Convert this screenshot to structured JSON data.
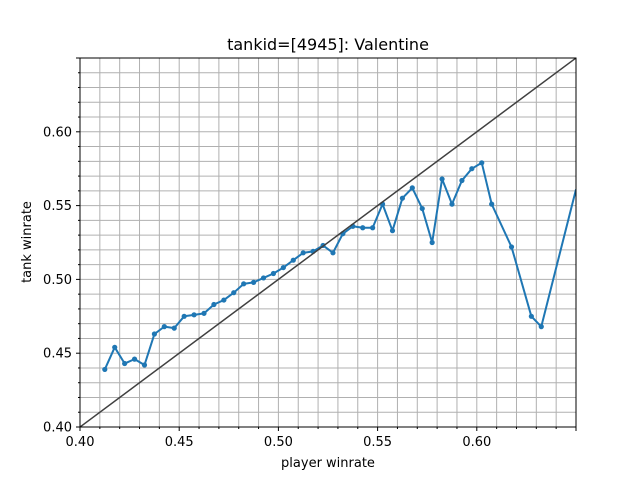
{
  "chart_data": {
    "type": "line",
    "title": "tankid=[4945]: Valentine",
    "xlabel": "player winrate",
    "ylabel": "tank winrate",
    "xlim": [
      0.4,
      0.65
    ],
    "ylim": [
      0.4,
      0.65
    ],
    "x_ticks": [
      "0.40",
      "0.45",
      "0.50",
      "0.55",
      "0.60"
    ],
    "y_ticks": [
      "0.40",
      "0.45",
      "0.50",
      "0.55",
      "0.60"
    ],
    "grid": true,
    "minor_grid_step": 0.01,
    "series": [
      {
        "color": "#1f77b4",
        "marker": "circle",
        "points": [
          [
            0.4125,
            0.439
          ],
          [
            0.4175,
            0.454
          ],
          [
            0.4225,
            0.443
          ],
          [
            0.4275,
            0.446
          ],
          [
            0.4325,
            0.442
          ],
          [
            0.4375,
            0.463
          ],
          [
            0.4425,
            0.468
          ],
          [
            0.4475,
            0.467
          ],
          [
            0.4525,
            0.475
          ],
          [
            0.4575,
            0.476
          ],
          [
            0.4625,
            0.477
          ],
          [
            0.4675,
            0.483
          ],
          [
            0.4725,
            0.486
          ],
          [
            0.4775,
            0.491
          ],
          [
            0.4825,
            0.497
          ],
          [
            0.4875,
            0.498
          ],
          [
            0.4925,
            0.501
          ],
          [
            0.4975,
            0.504
          ],
          [
            0.5025,
            0.508
          ],
          [
            0.5075,
            0.513
          ],
          [
            0.5125,
            0.518
          ],
          [
            0.5175,
            0.519
          ],
          [
            0.5225,
            0.523
          ],
          [
            0.5275,
            0.518
          ],
          [
            0.5325,
            0.531
          ],
          [
            0.5375,
            0.536
          ],
          [
            0.5425,
            0.535
          ],
          [
            0.5475,
            0.535
          ],
          [
            0.5525,
            0.551
          ],
          [
            0.5575,
            0.533
          ],
          [
            0.5625,
            0.555
          ],
          [
            0.5675,
            0.562
          ],
          [
            0.5725,
            0.548
          ],
          [
            0.5775,
            0.525
          ],
          [
            0.5825,
            0.568
          ],
          [
            0.5875,
            0.551
          ],
          [
            0.5925,
            0.567
          ],
          [
            0.5975,
            0.575
          ],
          [
            0.6025,
            0.579
          ],
          [
            0.6075,
            0.551
          ],
          [
            0.6175,
            0.522
          ],
          [
            0.6275,
            0.475
          ],
          [
            0.6325,
            0.468
          ]
        ],
        "tail_line_to": [
          0.65,
          0.561
        ]
      },
      {
        "color": "#404040",
        "style": "diagonal",
        "points": [
          [
            0.4,
            0.4
          ],
          [
            0.65,
            0.65
          ]
        ]
      }
    ]
  }
}
